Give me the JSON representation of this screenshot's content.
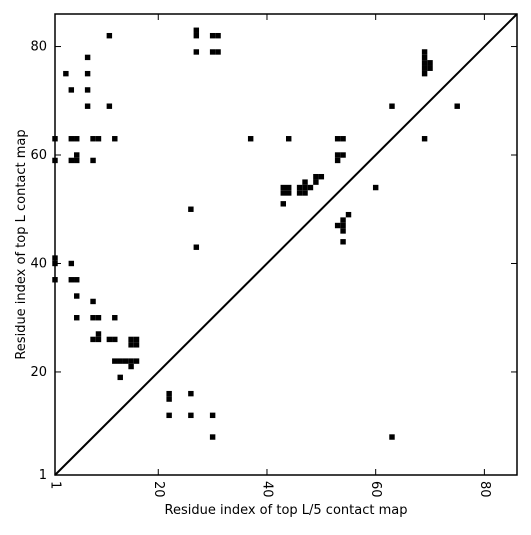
{
  "chart_data": {
    "type": "scatter",
    "title": "",
    "xlabel": "Residue index of top L/5 contact map",
    "ylabel": "Residue index of top L contact map",
    "xlim": [
      1,
      86
    ],
    "ylim": [
      1,
      86
    ],
    "xticks": [
      1,
      20,
      40,
      60,
      80
    ],
    "yticks": [
      1,
      20,
      40,
      60,
      80
    ],
    "xtick_labels": [
      "1",
      "20",
      "40",
      "60",
      "80"
    ],
    "ytick_labels": [
      "1",
      "20",
      "40",
      "60",
      "80"
    ],
    "diagonal": true,
    "grid": false,
    "marker": "square",
    "marker_color": "#000000",
    "upper_points": [
      [
        11,
        82
      ],
      [
        27,
        83
      ],
      [
        27,
        82
      ],
      [
        30,
        82
      ],
      [
        31,
        82
      ],
      [
        27,
        79
      ],
      [
        30,
        79
      ],
      [
        31,
        79
      ],
      [
        3,
        75
      ],
      [
        7,
        78
      ],
      [
        7,
        75
      ],
      [
        4,
        72
      ],
      [
        7,
        72
      ],
      [
        7,
        69
      ],
      [
        11,
        69
      ],
      [
        69,
        79
      ],
      [
        69,
        78
      ],
      [
        69,
        77
      ],
      [
        70,
        77
      ],
      [
        69,
        76
      ],
      [
        70,
        76
      ],
      [
        69,
        75
      ],
      [
        75,
        69
      ],
      [
        63,
        69
      ],
      [
        1,
        63
      ],
      [
        4,
        63
      ],
      [
        5,
        63
      ],
      [
        8,
        63
      ],
      [
        9,
        63
      ],
      [
        12,
        63
      ],
      [
        37,
        63
      ],
      [
        44,
        63
      ],
      [
        53,
        63
      ],
      [
        54,
        63
      ],
      [
        69,
        63
      ],
      [
        1,
        59
      ],
      [
        4,
        59
      ],
      [
        5,
        59
      ],
      [
        5,
        60
      ],
      [
        8,
        59
      ],
      [
        53,
        60
      ],
      [
        54,
        60
      ],
      [
        53,
        59
      ],
      [
        49,
        56
      ],
      [
        50,
        56
      ],
      [
        49,
        55
      ],
      [
        47,
        55
      ],
      [
        46,
        54
      ],
      [
        47,
        54
      ],
      [
        48,
        54
      ],
      [
        43,
        54
      ],
      [
        44,
        54
      ],
      [
        46,
        53
      ],
      [
        47,
        53
      ],
      [
        43,
        53
      ],
      [
        44,
        53
      ],
      [
        60,
        54
      ],
      [
        43,
        51
      ],
      [
        26,
        50
      ],
      [
        55,
        49
      ],
      [
        54,
        48
      ],
      [
        53,
        47
      ],
      [
        54,
        47
      ],
      [
        54,
        46
      ],
      [
        54,
        44
      ],
      [
        27,
        43
      ]
    ],
    "lower_points": [
      [
        1,
        41
      ],
      [
        1,
        40
      ],
      [
        4,
        40
      ],
      [
        1,
        37
      ],
      [
        4,
        37
      ],
      [
        5,
        37
      ],
      [
        5,
        34
      ],
      [
        8,
        33
      ],
      [
        5,
        30
      ],
      [
        8,
        30
      ],
      [
        9,
        30
      ],
      [
        12,
        30
      ],
      [
        9,
        27
      ],
      [
        8,
        26
      ],
      [
        9,
        26
      ],
      [
        11,
        26
      ],
      [
        12,
        26
      ],
      [
        15,
        26
      ],
      [
        16,
        26
      ],
      [
        15,
        25
      ],
      [
        16,
        25
      ],
      [
        12,
        22
      ],
      [
        13,
        22
      ],
      [
        14,
        22
      ],
      [
        15,
        22
      ],
      [
        16,
        22
      ],
      [
        15,
        21
      ],
      [
        13,
        19
      ],
      [
        22,
        16
      ],
      [
        22,
        15
      ],
      [
        26,
        16
      ],
      [
        22,
        12
      ],
      [
        26,
        12
      ],
      [
        30,
        12
      ],
      [
        30,
        8
      ],
      [
        63,
        8
      ]
    ]
  }
}
